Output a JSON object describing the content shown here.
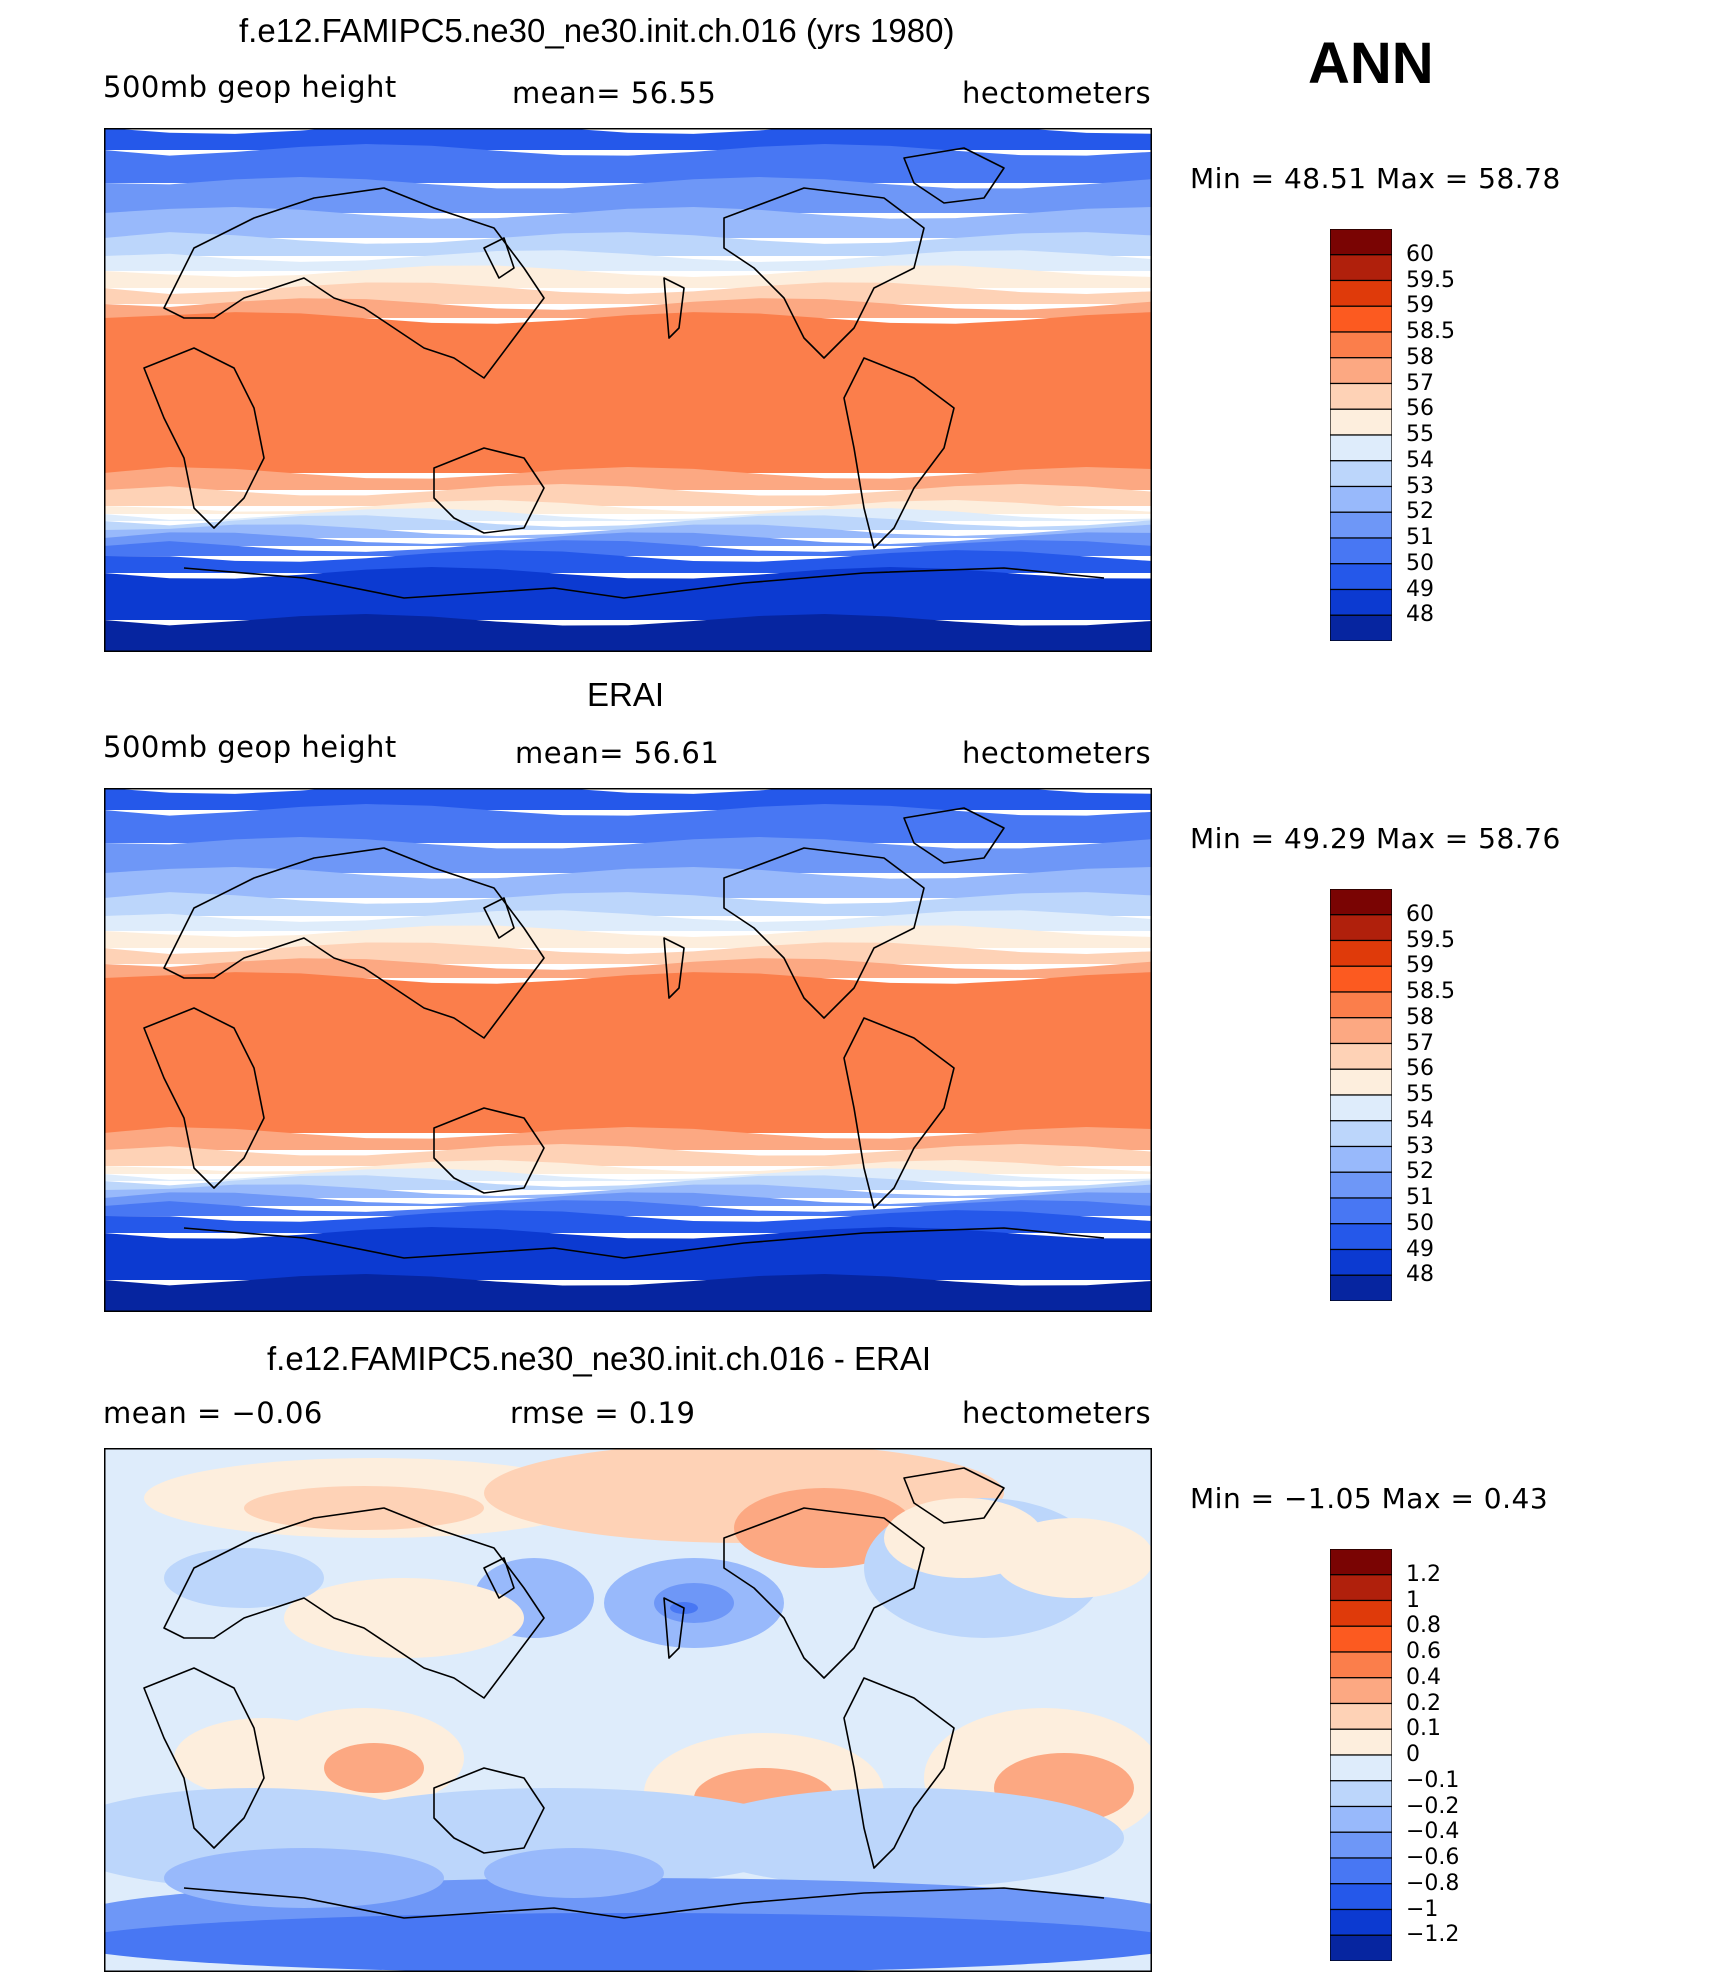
{
  "season_label": "ANN",
  "panels": [
    {
      "title": "f.e12.FAMIPC5.ne30_ne30.init.ch.016 (yrs 1980)",
      "left_label": "500mb  geop  height",
      "center_label": "mean=   56.55",
      "units": "hectometers",
      "minmax": "Min  =    48.51  Max  =    58.78"
    },
    {
      "title": "ERAI",
      "left_label": "500mb  geop  height",
      "center_label": "mean=   56.61",
      "units": "hectometers",
      "minmax": "Min  =    49.29  Max  =    58.76"
    },
    {
      "title": "f.e12.FAMIPC5.ne30_ne30.init.ch.016 - ERAI",
      "left_label": "mean  =    −0.06",
      "center_label": "rmse  =     0.19",
      "units": "hectometers",
      "minmax": "Min  =   −1.05  Max  =      0.43"
    }
  ],
  "chart_data": [
    {
      "type": "heatmap",
      "title": "f.e12.FAMIPC5.ne30_ne30.init.ch.016 (yrs 1980)",
      "variable": "500mb geop height",
      "units": "hectometers",
      "mean": 56.55,
      "min": 48.51,
      "max": 58.78,
      "colorbar_levels": [
        "60",
        "59.5",
        "59",
        "58.5",
        "58",
        "57",
        "56",
        "55",
        "54",
        "53",
        "52",
        "51",
        "50",
        "49",
        "48"
      ],
      "colorbar_colors": [
        "#7a0403",
        "#b0200c",
        "#df3a0a",
        "#fc5a20",
        "#fb7e4b",
        "#fca882",
        "#fed2b6",
        "#fdeedd",
        "#deecfb",
        "#bcd6fb",
        "#98b9fb",
        "#6e97f7",
        "#4877f3",
        "#2558ea",
        "#0c3ad1",
        "#0625a0"
      ]
    },
    {
      "type": "heatmap",
      "title": "ERAI",
      "variable": "500mb geop height",
      "units": "hectometers",
      "mean": 56.61,
      "min": 49.29,
      "max": 58.76,
      "colorbar_levels": [
        "60",
        "59.5",
        "59",
        "58.5",
        "58",
        "57",
        "56",
        "55",
        "54",
        "53",
        "52",
        "51",
        "50",
        "49",
        "48"
      ],
      "colorbar_colors": [
        "#7a0403",
        "#b0200c",
        "#df3a0a",
        "#fc5a20",
        "#fb7e4b",
        "#fca882",
        "#fed2b6",
        "#fdeedd",
        "#deecfb",
        "#bcd6fb",
        "#98b9fb",
        "#6e97f7",
        "#4877f3",
        "#2558ea",
        "#0c3ad1",
        "#0625a0"
      ]
    },
    {
      "type": "heatmap",
      "title": "f.e12.FAMIPC5.ne30_ne30.init.ch.016 - ERAI",
      "units": "hectometers",
      "mean": -0.06,
      "rmse": 0.19,
      "min": -1.05,
      "max": 0.43,
      "colorbar_levels": [
        "1.2",
        "1",
        "0.8",
        "0.6",
        "0.4",
        "0.2",
        "0.1",
        "0",
        "−0.1",
        "−0.2",
        "−0.4",
        "−0.6",
        "−0.8",
        "−1",
        "−1.2"
      ],
      "colorbar_colors": [
        "#7a0403",
        "#b0200c",
        "#df3a0a",
        "#fc5a20",
        "#fb7e4b",
        "#fca882",
        "#fed2b6",
        "#fdeedd",
        "#deecfb",
        "#bcd6fb",
        "#98b9fb",
        "#6e97f7",
        "#4877f3",
        "#2558ea",
        "#0c3ad1",
        "#0625a0"
      ]
    }
  ]
}
